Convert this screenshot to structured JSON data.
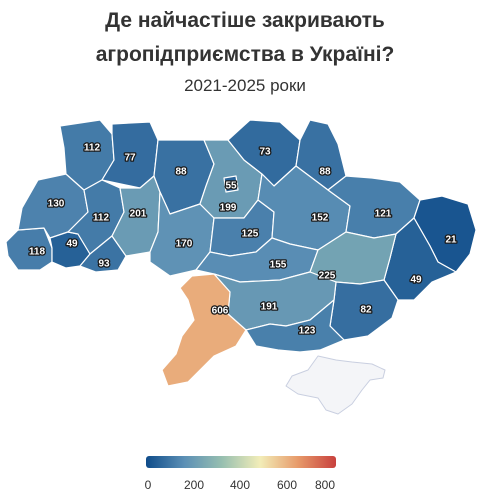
{
  "title_line1": "Де найчастіше закривають",
  "title_line2": "агропідприємства в Україні?",
  "subtitle": "2021-2025 роки",
  "color_scale": {
    "min": 0,
    "max": 800,
    "stops": [
      "#0f4c8a",
      "#5b8fb5",
      "#97bfb0",
      "#f2edb8",
      "#e79a6a",
      "#c8403d"
    ],
    "ticks": [
      "0",
      "200",
      "400",
      "600",
      "800"
    ]
  },
  "chart_data": {
    "type": "choropleth",
    "regions": [
      {
        "id": "volyn",
        "value": 112
      },
      {
        "id": "rivne",
        "value": 77
      },
      {
        "id": "zhytomyr",
        "value": 88
      },
      {
        "id": "kyiv-oblast",
        "value": 199
      },
      {
        "id": "kyiv-city",
        "value": 55
      },
      {
        "id": "chernihiv",
        "value": 73
      },
      {
        "id": "sumy",
        "value": 88
      },
      {
        "id": "lviv",
        "value": 130
      },
      {
        "id": "ternopil",
        "value": 112
      },
      {
        "id": "khmelnytskyi",
        "value": 201
      },
      {
        "id": "zakarpattia",
        "value": 118
      },
      {
        "id": "ivano-frankivsk",
        "value": 49
      },
      {
        "id": "chernivtsi",
        "value": 93
      },
      {
        "id": "vinnytsia",
        "value": 170
      },
      {
        "id": "cherkasy",
        "value": 125
      },
      {
        "id": "poltava",
        "value": 152
      },
      {
        "id": "kharkiv",
        "value": 121
      },
      {
        "id": "luhansk",
        "value": 21
      },
      {
        "id": "kirovohrad",
        "value": 155
      },
      {
        "id": "dnipropetrovsk",
        "value": 225
      },
      {
        "id": "donetsk",
        "value": 49
      },
      {
        "id": "odesa",
        "value": 606
      },
      {
        "id": "mykolaiv",
        "value": 191
      },
      {
        "id": "kherson",
        "value": 123
      },
      {
        "id": "zaporizhzhia",
        "value": 82
      },
      {
        "id": "crimea",
        "value": null
      }
    ]
  }
}
